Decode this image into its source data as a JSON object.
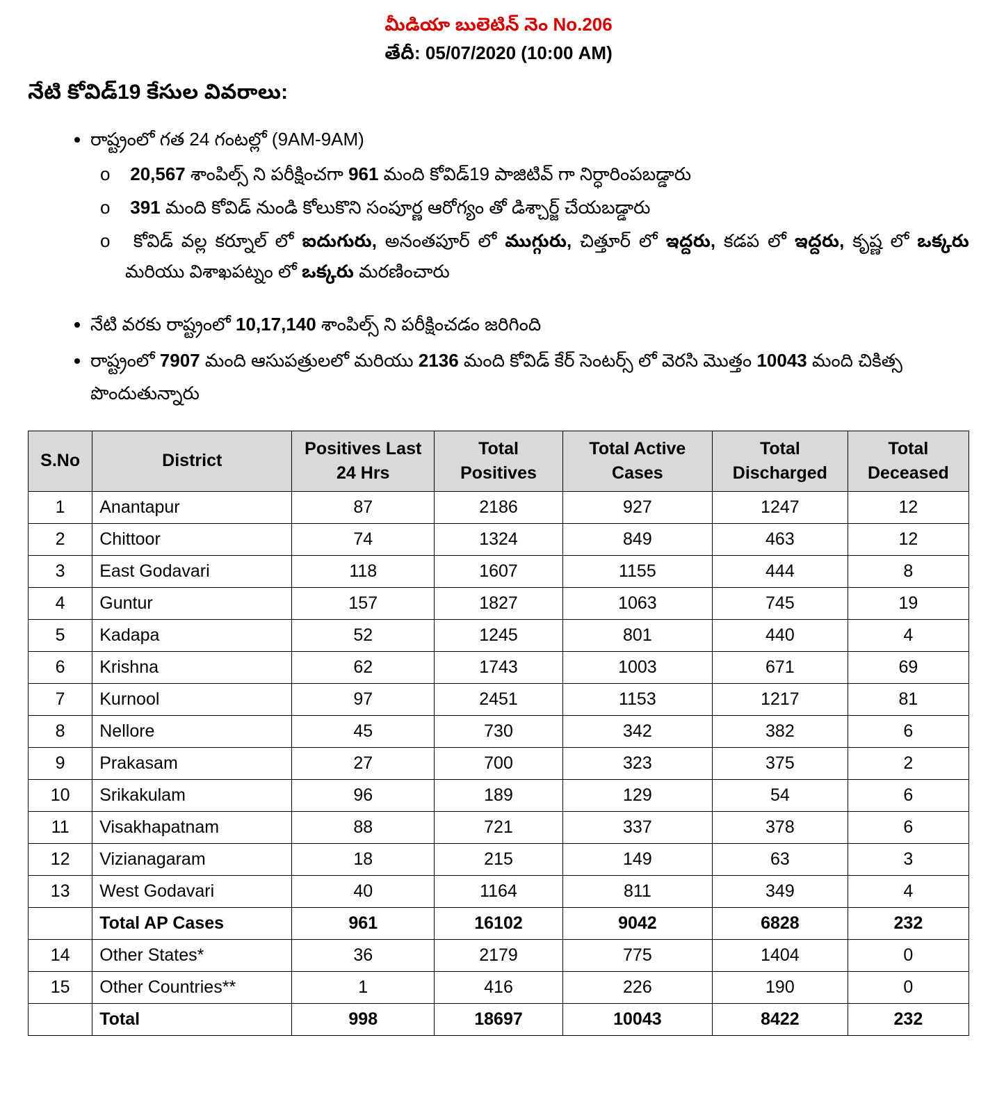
{
  "header": {
    "bulletin": "మీడియా బులెటిన్ నెం No.206",
    "date_label": "తేదీ",
    "date_value": ": 05/07/2020 (10:00 AM)"
  },
  "section_title": "నేటి కోవిడ్19 కేసుల వివరాలు:",
  "bullets": {
    "b1": "రాష్ట్రంలో గత 24 గంటల్లో (9AM-9AM)",
    "b1a_pre": "20,567",
    "b1a_mid1": " శాంపిల్స్ ని పరీక్షించగా ",
    "b1a_bold2": "961",
    "b1a_tail": " మంది కోవిడ్19 పాజిటివ్ గా నిర్ధారింపబడ్డారు",
    "b1b_bold": "391",
    "b1b_tail": " మంది కోవిడ్ నుండి కోలుకొని సంపూర్ణ ఆరోగ్యం తో డిశ్చార్జ్ చేయబడ్డారు",
    "b1c_1": "కోవిడ్ వల్ల కర్నూల్ లో ",
    "b1c_b1": "ఐదుగురు,",
    "b1c_2": " అనంతపూర్ లో ",
    "b1c_b2": "ముగ్గురు,",
    "b1c_3": " చిత్తూర్ లో ",
    "b1c_b3": "ఇద్దరు,",
    "b1c_4": " కడప లో ",
    "b1c_b4": "ఇద్దరు,",
    "b1c_5": " కృష్ణ లో ",
    "b1c_b5": "ఒక్కరు",
    "b1c_6": " మరియు విశాఖపట్నం లో ",
    "b1c_b6": "ఒక్కరు",
    "b1c_7": " మరణించారు",
    "b2_1": "నేటి వరకు రాష్ట్రంలో ",
    "b2_b": "10,17,140",
    "b2_2": " శాంపిల్స్ ని పరీక్షించడం జరిగింది",
    "b3_1": "రాష్ట్రంలో ",
    "b3_b1": "7907",
    "b3_2": " మంది ఆసుపత్రులలో మరియు ",
    "b3_b2": "2136",
    "b3_3": " మంది కోవిడ్ కేర్ సెంటర్స్ లో వెరసి మొత్తం ",
    "b3_b3": "10043",
    "b3_4": " మంది చికిత్స పొందుతున్నారు"
  },
  "table": {
    "columns": [
      "S.No",
      "District",
      "Positives Last 24 Hrs",
      "Total Positives",
      "Total Active Cases",
      "Total Discharged",
      "Total Deceased"
    ],
    "col_widths": [
      "90px",
      "280px",
      "200px",
      "180px",
      "210px",
      "190px",
      "170px"
    ],
    "rows": [
      {
        "sno": "1",
        "district": "Anantapur",
        "last24": "87",
        "total_pos": "2186",
        "active": "927",
        "discharged": "1247",
        "deceased": "12",
        "bold": false
      },
      {
        "sno": "2",
        "district": "Chittoor",
        "last24": "74",
        "total_pos": "1324",
        "active": "849",
        "discharged": "463",
        "deceased": "12",
        "bold": false
      },
      {
        "sno": "3",
        "district": "East Godavari",
        "last24": "118",
        "total_pos": "1607",
        "active": "1155",
        "discharged": "444",
        "deceased": "8",
        "bold": false
      },
      {
        "sno": "4",
        "district": "Guntur",
        "last24": "157",
        "total_pos": "1827",
        "active": "1063",
        "discharged": "745",
        "deceased": "19",
        "bold": false
      },
      {
        "sno": "5",
        "district": "Kadapa",
        "last24": "52",
        "total_pos": "1245",
        "active": "801",
        "discharged": "440",
        "deceased": "4",
        "bold": false
      },
      {
        "sno": "6",
        "district": "Krishna",
        "last24": "62",
        "total_pos": "1743",
        "active": "1003",
        "discharged": "671",
        "deceased": "69",
        "bold": false
      },
      {
        "sno": "7",
        "district": "Kurnool",
        "last24": "97",
        "total_pos": "2451",
        "active": "1153",
        "discharged": "1217",
        "deceased": "81",
        "bold": false
      },
      {
        "sno": "8",
        "district": "Nellore",
        "last24": "45",
        "total_pos": "730",
        "active": "342",
        "discharged": "382",
        "deceased": "6",
        "bold": false
      },
      {
        "sno": "9",
        "district": "Prakasam",
        "last24": "27",
        "total_pos": "700",
        "active": "323",
        "discharged": "375",
        "deceased": "2",
        "bold": false
      },
      {
        "sno": "10",
        "district": "Srikakulam",
        "last24": "96",
        "total_pos": "189",
        "active": "129",
        "discharged": "54",
        "deceased": "6",
        "bold": false
      },
      {
        "sno": "11",
        "district": "Visakhapatnam",
        "last24": "88",
        "total_pos": "721",
        "active": "337",
        "discharged": "378",
        "deceased": "6",
        "bold": false
      },
      {
        "sno": "12",
        "district": "Vizianagaram",
        "last24": "18",
        "total_pos": "215",
        "active": "149",
        "discharged": "63",
        "deceased": "3",
        "bold": false
      },
      {
        "sno": "13",
        "district": "West Godavari",
        "last24": "40",
        "total_pos": "1164",
        "active": "811",
        "discharged": "349",
        "deceased": "4",
        "bold": false
      },
      {
        "sno": "",
        "district": "Total AP Cases",
        "last24": "961",
        "total_pos": "16102",
        "active": "9042",
        "discharged": "6828",
        "deceased": "232",
        "bold": true
      },
      {
        "sno": "14",
        "district": "Other States*",
        "last24": "36",
        "total_pos": "2179",
        "active": "775",
        "discharged": "1404",
        "deceased": "0",
        "bold": false
      },
      {
        "sno": "15",
        "district": "Other Countries**",
        "last24": "1",
        "total_pos": "416",
        "active": "226",
        "discharged": "190",
        "deceased": "0",
        "bold": false
      },
      {
        "sno": "",
        "district": "Total",
        "last24": "998",
        "total_pos": "18697",
        "active": "10043",
        "discharged": "8422",
        "deceased": "232",
        "bold": true
      }
    ]
  }
}
